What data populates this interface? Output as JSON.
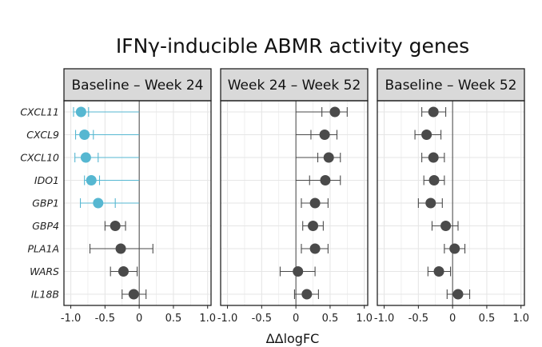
{
  "chart_data": {
    "type": "forest",
    "title": "IFNγ-inducible ABMR activity genes",
    "xlabel": "ΔΔlogFC",
    "xlim": [
      -1.1,
      1.05
    ],
    "xticks": [
      -1.0,
      -0.5,
      0,
      0.5,
      1.0
    ],
    "xtick_labels": [
      "-1.0",
      "-0.5",
      "0",
      "0.5",
      "1.0"
    ],
    "genes": [
      "CXCL11",
      "CXCL9",
      "CXCL10",
      "IDO1",
      "GBP1",
      "GBP4",
      "PLA1A",
      "WARS",
      "IL18B"
    ],
    "colors": {
      "highlight": "#56b7d1",
      "normal": "#4a4a4a",
      "strip": "#d9d9d9",
      "grid": "#e6e6e6"
    },
    "panels": [
      {
        "name": "Baseline – Week 24",
        "series": [
          {
            "gene": "CXCL11",
            "est": -0.85,
            "lo": -0.96,
            "hi": -0.74,
            "ci_hi": 0.0,
            "highlight": true
          },
          {
            "gene": "CXCL9",
            "est": -0.8,
            "lo": -0.93,
            "hi": -0.67,
            "ci_hi": 0.0,
            "highlight": true
          },
          {
            "gene": "CXCL10",
            "est": -0.78,
            "lo": -0.94,
            "hi": -0.6,
            "ci_hi": 0.0,
            "highlight": true
          },
          {
            "gene": "IDO1",
            "est": -0.7,
            "lo": -0.8,
            "hi": -0.58,
            "ci_hi": 0.0,
            "highlight": true
          },
          {
            "gene": "GBP1",
            "est": -0.6,
            "lo": -0.86,
            "hi": -0.35,
            "ci_hi": 0.0,
            "highlight": true
          },
          {
            "gene": "GBP4",
            "est": -0.35,
            "lo": -0.5,
            "hi": -0.2,
            "highlight": false
          },
          {
            "gene": "PLA1A",
            "est": -0.27,
            "lo": -0.72,
            "hi": 0.2,
            "highlight": false
          },
          {
            "gene": "WARS",
            "est": -0.23,
            "lo": -0.42,
            "hi": -0.03,
            "highlight": false
          },
          {
            "gene": "IL18B",
            "est": -0.08,
            "lo": -0.25,
            "hi": 0.1,
            "highlight": false
          }
        ]
      },
      {
        "name": "Week 24 – Week 52",
        "series": [
          {
            "gene": "CXCL11",
            "est": 0.57,
            "lo": 0.38,
            "hi": 0.75,
            "ci_lo": 0.0,
            "highlight": false
          },
          {
            "gene": "CXCL9",
            "est": 0.42,
            "lo": 0.22,
            "hi": 0.6,
            "ci_lo": 0.0,
            "highlight": false
          },
          {
            "gene": "CXCL10",
            "est": 0.48,
            "lo": 0.32,
            "hi": 0.65,
            "ci_lo": 0.0,
            "highlight": false
          },
          {
            "gene": "IDO1",
            "est": 0.43,
            "lo": 0.2,
            "hi": 0.65,
            "ci_lo": 0.0,
            "highlight": false
          },
          {
            "gene": "GBP1",
            "est": 0.28,
            "lo": 0.08,
            "hi": 0.47,
            "highlight": false
          },
          {
            "gene": "GBP4",
            "est": 0.25,
            "lo": 0.1,
            "hi": 0.4,
            "highlight": false
          },
          {
            "gene": "PLA1A",
            "est": 0.28,
            "lo": 0.08,
            "hi": 0.47,
            "highlight": false
          },
          {
            "gene": "WARS",
            "est": 0.03,
            "lo": -0.23,
            "hi": 0.28,
            "highlight": false
          },
          {
            "gene": "IL18B",
            "est": 0.16,
            "lo": -0.02,
            "hi": 0.33,
            "highlight": false
          }
        ]
      },
      {
        "name": "Baseline – Week 52",
        "series": [
          {
            "gene": "CXCL11",
            "est": -0.28,
            "lo": -0.45,
            "hi": -0.1,
            "highlight": false
          },
          {
            "gene": "CXCL9",
            "est": -0.38,
            "lo": -0.55,
            "hi": -0.17,
            "highlight": false
          },
          {
            "gene": "CXCL10",
            "est": -0.28,
            "lo": -0.45,
            "hi": -0.12,
            "highlight": false
          },
          {
            "gene": "IDO1",
            "est": -0.27,
            "lo": -0.42,
            "hi": -0.12,
            "highlight": false
          },
          {
            "gene": "GBP1",
            "est": -0.32,
            "lo": -0.5,
            "hi": -0.15,
            "highlight": false
          },
          {
            "gene": "GBP4",
            "est": -0.1,
            "lo": -0.3,
            "hi": 0.08,
            "highlight": false
          },
          {
            "gene": "PLA1A",
            "est": 0.03,
            "lo": -0.12,
            "hi": 0.18,
            "highlight": false
          },
          {
            "gene": "WARS",
            "est": -0.2,
            "lo": -0.36,
            "hi": -0.03,
            "highlight": false
          },
          {
            "gene": "IL18B",
            "est": 0.08,
            "lo": -0.08,
            "hi": 0.25,
            "highlight": false
          }
        ]
      }
    ]
  }
}
